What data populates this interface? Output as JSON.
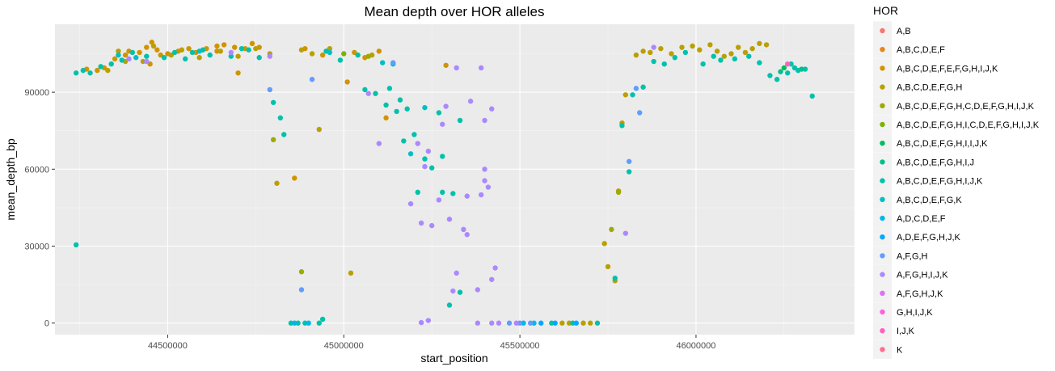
{
  "chart_data": {
    "type": "scatter",
    "title": "Mean depth over HOR alleles",
    "xlabel": "start_position",
    "ylabel": "mean_depth_bp",
    "xlim": [
      44180000,
      46450000
    ],
    "ylim": [
      -4500,
      116500
    ],
    "x_ticks": [
      44500000,
      45000000,
      45500000,
      46000000
    ],
    "x_tick_labels": [
      "44500000",
      "45000000",
      "45500000",
      "46000000"
    ],
    "y_ticks": [
      0,
      30000,
      60000,
      90000
    ],
    "y_tick_labels": [
      "0",
      "30000",
      "60000",
      "90000"
    ],
    "grid": true,
    "legend_position": "right",
    "legend_title": "HOR",
    "series": [
      {
        "name": "A,B",
        "color": "#F8766D",
        "points": []
      },
      {
        "name": "A,B,C,D,E,F",
        "color": "#E7851E",
        "points": []
      },
      {
        "name": "A,B,C,D,E,F,E,F,G,H,I,J,K",
        "color": "#D09400",
        "points": [
          [
            44270000,
            99000
          ],
          [
            44300000,
            98500
          ],
          [
            44320000,
            99500
          ],
          [
            44350000,
            103000
          ],
          [
            44390000,
            106000
          ],
          [
            44420000,
            105500
          ],
          [
            44440000,
            107500
          ],
          [
            44455000,
            109500
          ],
          [
            44470000,
            106500
          ],
          [
            44480000,
            104500
          ],
          [
            44500000,
            105000
          ],
          [
            44530000,
            106000
          ],
          [
            44560000,
            107000
          ],
          [
            44580000,
            105500
          ],
          [
            44610000,
            107000
          ],
          [
            44640000,
            108000
          ],
          [
            44660000,
            108500
          ],
          [
            44690000,
            107500
          ],
          [
            44700000,
            97500
          ],
          [
            44720000,
            107000
          ],
          [
            44740000,
            109000
          ],
          [
            44760000,
            107500
          ],
          [
            44860000,
            56500
          ],
          [
            44890000,
            107000
          ],
          [
            45010000,
            94000
          ],
          [
            45030000,
            105500
          ],
          [
            45060000,
            103500
          ],
          [
            45100000,
            106000
          ],
          [
            45120000,
            80000
          ],
          [
            44450000,
            101000
          ],
          [
            44380000,
            104500
          ],
          [
            44640000,
            106000
          ],
          [
            44940000,
            104500
          ],
          [
            45290000,
            100500
          ]
        ]
      },
      {
        "name": "A,B,C,D,E,F,G,H",
        "color": "#B9A000",
        "points": [
          [
            44330000,
            98500
          ],
          [
            44360000,
            106000
          ],
          [
            44380000,
            102000
          ],
          [
            44430000,
            102000
          ],
          [
            44460000,
            108000
          ],
          [
            44510000,
            104500
          ],
          [
            44540000,
            106500
          ],
          [
            44590000,
            103500
          ],
          [
            44650000,
            106000
          ],
          [
            44700000,
            104000
          ],
          [
            44750000,
            107000
          ],
          [
            44790000,
            105000
          ],
          [
            44810000,
            54500
          ],
          [
            44880000,
            106500
          ],
          [
            44910000,
            105000
          ],
          [
            44930000,
            75500
          ],
          [
            44960000,
            107000
          ],
          [
            45020000,
            19500
          ],
          [
            45080000,
            104500
          ],
          [
            45740000,
            31000
          ],
          [
            45750000,
            22000
          ],
          [
            45770000,
            16500
          ],
          [
            45780000,
            51500
          ],
          [
            45790000,
            78000
          ],
          [
            45800000,
            89000
          ],
          [
            45830000,
            104500
          ],
          [
            45850000,
            106000
          ],
          [
            45870000,
            105500
          ],
          [
            45900000,
            107000
          ],
          [
            45930000,
            105000
          ],
          [
            45960000,
            107500
          ],
          [
            45990000,
            108000
          ],
          [
            46010000,
            106500
          ],
          [
            46040000,
            108500
          ],
          [
            46060000,
            106000
          ],
          [
            46080000,
            104000
          ],
          [
            46100000,
            105000
          ],
          [
            46120000,
            107500
          ],
          [
            46140000,
            105500
          ],
          [
            46160000,
            107000
          ],
          [
            46180000,
            109000
          ],
          [
            46200000,
            108500
          ],
          [
            45620000,
            0
          ],
          [
            45640000,
            0
          ],
          [
            45680000,
            0
          ],
          [
            45700000,
            0
          ]
        ]
      },
      {
        "name": "A,B,C,D,E,F,G,H,C,D,E,F,G,H,I,J,K",
        "color": "#9DAA00",
        "points": [
          [
            44880000,
            20000
          ],
          [
            44800000,
            71500
          ],
          [
            45070000,
            104000
          ],
          [
            45760000,
            36500
          ],
          [
            45780000,
            51000
          ]
        ]
      },
      {
        "name": "A,B,C,D,E,F,G,H,I,C,D,E,F,G,H,I,J,K",
        "color": "#7AB400",
        "points": [
          [
            45000000,
            105000
          ]
        ]
      },
      {
        "name": "A,B,C,D,E,F,G,H,I,I,J,K",
        "color": "#00BD5C",
        "points": [
          [
            46250000,
            99500
          ]
        ]
      },
      {
        "name": "A,B,C,D,E,F,G,H,I,J",
        "color": "#00C08B",
        "points": [
          [
            46240000,
            98000
          ],
          [
            46300000,
            99000
          ]
        ]
      },
      {
        "name": "A,B,C,D,E,F,G,H,I,J,K",
        "color": "#00C1AA",
        "points": [
          [
            44240000,
            97500
          ],
          [
            44260000,
            98500
          ],
          [
            44280000,
            97500
          ],
          [
            44310000,
            100000
          ],
          [
            44340000,
            101000
          ],
          [
            44370000,
            102500
          ],
          [
            44400000,
            105500
          ],
          [
            44440000,
            104000
          ],
          [
            44490000,
            103500
          ],
          [
            44520000,
            105500
          ],
          [
            44550000,
            103000
          ],
          [
            44570000,
            105500
          ],
          [
            44600000,
            106500
          ],
          [
            44620000,
            104500
          ],
          [
            44680000,
            104000
          ],
          [
            44710000,
            107000
          ],
          [
            44730000,
            106500
          ],
          [
            44760000,
            103500
          ],
          [
            44800000,
            86000
          ],
          [
            44820000,
            80000
          ],
          [
            44830000,
            73500
          ],
          [
            44850000,
            0
          ],
          [
            44870000,
            0
          ],
          [
            44890000,
            0
          ],
          [
            44930000,
            0
          ],
          [
            44940000,
            1500
          ],
          [
            44950000,
            106000
          ],
          [
            44990000,
            102500
          ],
          [
            45040000,
            104500
          ],
          [
            45060000,
            91000
          ],
          [
            45090000,
            89500
          ],
          [
            45120000,
            85000
          ],
          [
            45130000,
            91500
          ],
          [
            45150000,
            82500
          ],
          [
            45160000,
            87000
          ],
          [
            45170000,
            71000
          ],
          [
            45180000,
            83500
          ],
          [
            45200000,
            73500
          ],
          [
            45210000,
            51000
          ],
          [
            45230000,
            64000
          ],
          [
            45250000,
            60500
          ],
          [
            45270000,
            82000
          ],
          [
            45280000,
            65000
          ],
          [
            45300000,
            7000
          ],
          [
            45330000,
            79000
          ],
          [
            45310000,
            50500
          ],
          [
            45280000,
            51000
          ],
          [
            45330000,
            12000
          ],
          [
            46180000,
            101500
          ],
          [
            46210000,
            96500
          ],
          [
            46230000,
            95000
          ],
          [
            46260000,
            97500
          ],
          [
            46280000,
            99500
          ],
          [
            46310000,
            99000
          ],
          [
            46330000,
            88500
          ],
          [
            45770000,
            17500
          ],
          [
            45790000,
            77000
          ],
          [
            45810000,
            59000
          ],
          [
            45820000,
            89000
          ],
          [
            45850000,
            92000
          ],
          [
            45880000,
            102000
          ],
          [
            45910000,
            101000
          ],
          [
            45940000,
            103500
          ],
          [
            45970000,
            105500
          ],
          [
            46020000,
            101000
          ],
          [
            46050000,
            104000
          ],
          [
            46070000,
            102500
          ],
          [
            46110000,
            103000
          ],
          [
            46150000,
            104000
          ],
          [
            46270000,
            101000
          ],
          [
            46290000,
            98500
          ],
          [
            45590000,
            0
          ],
          [
            45650000,
            0
          ],
          [
            45720000,
            0
          ],
          [
            44240000,
            30500
          ]
        ]
      },
      {
        "name": "A,B,C,D,E,F,G,K",
        "color": "#00BFC4",
        "points": [
          [
            44360000,
            104500
          ],
          [
            44410000,
            103500
          ],
          [
            44590000,
            106000
          ],
          [
            44960000,
            105500
          ],
          [
            45110000,
            101500
          ],
          [
            45140000,
            101000
          ],
          [
            45190000,
            66000
          ],
          [
            45230000,
            84000
          ]
        ]
      },
      {
        "name": "A,D,C,D,E,F",
        "color": "#00B8E7",
        "points": [
          [
            44900000,
            0
          ],
          [
            44860000,
            0
          ],
          [
            45510000,
            0
          ],
          [
            45540000,
            0
          ]
        ]
      },
      {
        "name": "A,D,E,F,G,H,J,K",
        "color": "#00A9FF",
        "points": [
          [
            45560000,
            0
          ],
          [
            45600000,
            0
          ],
          [
            45660000,
            0
          ]
        ]
      },
      {
        "name": "A,F,G,H",
        "color": "#619CFF",
        "points": [
          [
            44790000,
            91000
          ],
          [
            44880000,
            13000
          ],
          [
            44910000,
            95000
          ],
          [
            45140000,
            101500
          ],
          [
            45810000,
            63000
          ],
          [
            45830000,
            91500
          ],
          [
            45840000,
            82000
          ],
          [
            45470000,
            0
          ],
          [
            45500000,
            0
          ],
          [
            45530000,
            0
          ]
        ]
      },
      {
        "name": "A,F,G,H,I,J,K",
        "color": "#AC88FF",
        "points": [
          [
            44390000,
            103000
          ],
          [
            44440000,
            102000
          ],
          [
            44680000,
            105500
          ],
          [
            44790000,
            104000
          ],
          [
            45070000,
            89500
          ],
          [
            45100000,
            70000
          ],
          [
            45190000,
            46500
          ],
          [
            45210000,
            70000
          ],
          [
            45220000,
            39000
          ],
          [
            45230000,
            61000
          ],
          [
            45240000,
            67000
          ],
          [
            45250000,
            38000
          ],
          [
            45270000,
            48000
          ],
          [
            45280000,
            77500
          ],
          [
            45290000,
            84500
          ],
          [
            45300000,
            40500
          ],
          [
            45320000,
            19500
          ],
          [
            45340000,
            36500
          ],
          [
            45350000,
            34500
          ],
          [
            45360000,
            86500
          ],
          [
            45380000,
            13000
          ],
          [
            45390000,
            50000
          ],
          [
            45400000,
            60000
          ],
          [
            45410000,
            53000
          ],
          [
            45420000,
            17000
          ],
          [
            45430000,
            21500
          ],
          [
            45390000,
            99500
          ],
          [
            45350000,
            49500
          ],
          [
            45400000,
            55500
          ],
          [
            45400000,
            79000
          ],
          [
            45220000,
            200
          ],
          [
            45240000,
            1000
          ],
          [
            45310000,
            12500
          ],
          [
            45320000,
            99500
          ],
          [
            45420000,
            83500
          ],
          [
            45380000,
            0
          ],
          [
            45420000,
            0
          ],
          [
            45440000,
            0
          ],
          [
            45490000,
            0
          ],
          [
            45800000,
            35000
          ],
          [
            45880000,
            107500
          ]
        ]
      },
      {
        "name": "A,F,G,H,J,K",
        "color": "#DF70F8",
        "points": []
      },
      {
        "name": "G,H,I,J,K",
        "color": "#F863DF",
        "points": []
      },
      {
        "name": "I,J,K",
        "color": "#FF62BC",
        "points": [
          [
            46260000,
            101000
          ]
        ]
      },
      {
        "name": "K",
        "color": "#FF6C91",
        "points": []
      }
    ]
  }
}
